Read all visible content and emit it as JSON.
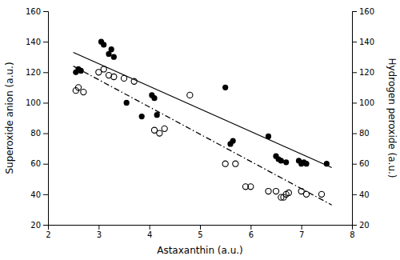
{
  "chart_data": {
    "type": "scatter",
    "xlabel": "Astaxanthin (a.u.)",
    "ylabel": "Superoxide anion (a.u.)",
    "y2label": "Hydrogen peroxide (a.u.)",
    "xlim": [
      2,
      8
    ],
    "ylim": [
      20,
      160
    ],
    "y2lim": [
      20,
      160
    ],
    "xticks": [
      2,
      3,
      4,
      5,
      6,
      7,
      8
    ],
    "yticks": [
      20,
      40,
      60,
      80,
      100,
      120,
      140,
      160
    ],
    "y2ticks": [
      20,
      40,
      60,
      80,
      100,
      120,
      140,
      160
    ],
    "grid": false,
    "series": [
      {
        "type": "scatter",
        "marker": "circle",
        "color": "#000000",
        "x": [
          2.55,
          2.6,
          2.65,
          3.05,
          3.1,
          3.2,
          3.25,
          3.3,
          3.55,
          3.85,
          4.05,
          4.1,
          4.15,
          5.5,
          5.6,
          5.65,
          6.35,
          6.5,
          6.55,
          6.6,
          6.7,
          6.95,
          7.0,
          7.05,
          7.1,
          7.5
        ],
        "values": [
          120,
          122,
          121,
          140,
          138,
          132,
          135,
          130,
          100,
          91,
          105,
          103,
          92,
          110,
          73,
          75,
          78,
          65,
          63,
          62,
          61,
          62,
          60,
          61,
          60,
          60
        ]
      },
      {
        "type": "line",
        "line_style": "solid",
        "color": "#000000",
        "x": [
          2.5,
          7.6
        ],
        "values": [
          133.0,
          57.5
        ]
      },
      {
        "type": "scatter",
        "marker": "open-circle",
        "color": "#000000",
        "x": [
          2.55,
          2.6,
          2.7,
          3.0,
          3.1,
          3.2,
          3.3,
          3.5,
          3.7,
          4.1,
          4.2,
          4.3,
          4.8,
          5.5,
          5.7,
          5.9,
          6.0,
          6.35,
          6.5,
          6.6,
          6.65,
          6.7,
          6.75,
          7.0,
          7.1,
          7.4
        ],
        "values": [
          108,
          110,
          107,
          120,
          122,
          118,
          117,
          116,
          114,
          82,
          80,
          83,
          105,
          60,
          60,
          45,
          45,
          42,
          42,
          38,
          38,
          40,
          41,
          42,
          40,
          40
        ]
      },
      {
        "type": "line",
        "line_style": "dashdot",
        "color": "#000000",
        "x": [
          2.5,
          7.6
        ],
        "values": [
          124.0,
          33.0
        ]
      }
    ]
  }
}
